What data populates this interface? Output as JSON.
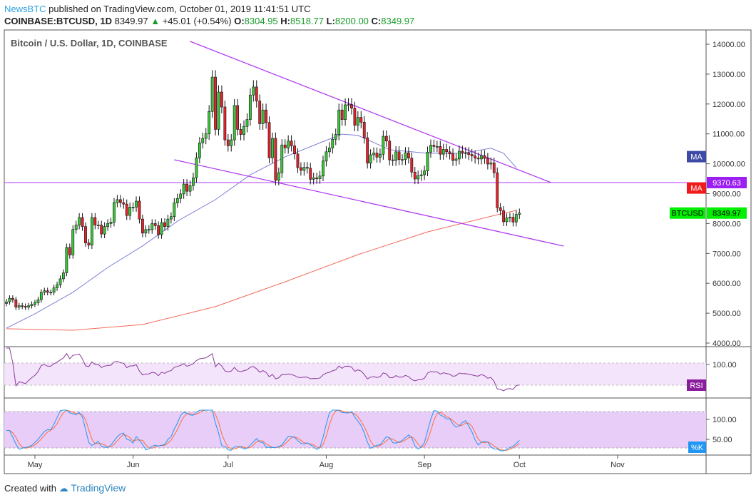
{
  "header": {
    "publisher": "NewsBTC",
    "published_text": "published on TradingView.com, October 01, 2019 11:41:51 UTC",
    "symbol": "COINBASE:BTCUSD, 1D",
    "last": "8349.97",
    "change": "+45.01 (+0.54%)",
    "o_label": "O:",
    "o": "8304.95",
    "h_label": "H:",
    "h": "8518.77",
    "l_label": "L:",
    "l": "8200.00",
    "c_label": "C:",
    "c": "8349.97"
  },
  "footer": {
    "created_with": "Created with",
    "brand": "TradingView"
  },
  "colors": {
    "up": "#37c837",
    "down": "#e8222c",
    "ma_fast": "#7b7fd6",
    "ma_slow": "#f26b5b",
    "trendline": "#b03cf0",
    "rsi": "#8a3a9a",
    "stoch_k": "#2196f3",
    "stoch_d": "#ff6d3a"
  },
  "chart_data": {
    "type": "candlestick",
    "title": "Bitcoin / U.S. Dollar, 1D, COINBASE",
    "start_date": "2019-04-22",
    "close": [
      5380,
      5500,
      5450,
      5200,
      5250,
      5230,
      5200,
      5250,
      5300,
      5350,
      5450,
      5700,
      5750,
      5700,
      5700,
      5850,
      5950,
      6150,
      6350,
      7200,
      6950,
      7800,
      7950,
      8200,
      7900,
      7350,
      7280,
      8200,
      7950,
      7950,
      7650,
      7900,
      8000,
      8050,
      8700,
      8800,
      8700,
      8650,
      8270,
      8550,
      8550,
      8750,
      8150,
      7680,
      7800,
      7800,
      8000,
      7930,
      7630,
      8030,
      7900,
      8150,
      8230,
      8690,
      8840,
      8990,
      9320,
      9080,
      9270,
      9530,
      10200,
      10700,
      10850,
      11000,
      11750,
      12900,
      11150,
      12400,
      11900,
      10800,
      10600,
      10800,
      11950,
      11150,
      10980,
      11250,
      11480,
      12300,
      12570,
      12100,
      11340,
      11800,
      11380,
      10200,
      10850,
      9450,
      9700,
      10630,
      10530,
      10760,
      10600,
      10330,
      9870,
      9780,
      9880,
      9850,
      9480,
      9530,
      9500,
      9590,
      10090,
      10400,
      10530,
      10820,
      10980,
      11800,
      11480,
      11970,
      11980,
      11860,
      11290,
      11550,
      11390,
      10870,
      10020,
      10300,
      10360,
      10220,
      10320,
      10920,
      10760,
      10130,
      10110,
      10400,
      10140,
      10140,
      10370,
      10190,
      9720,
      9490,
      9600,
      9630,
      9760,
      10390,
      10620,
      10580,
      10580,
      10320,
      10480,
      10400,
      10330,
      10110,
      10160,
      10420,
      10360,
      10370,
      10310,
      10260,
      10190,
      10160,
      10270,
      10180,
      9990,
      10030,
      9700,
      8530,
      8430,
      8060,
      8190,
      8210,
      8050,
      8305,
      8350
    ],
    "ma_fast": [
      [
        "2019-04-22",
        4500
      ],
      [
        "2019-05-01",
        4980
      ],
      [
        "2019-05-13",
        5700
      ],
      [
        "2019-05-24",
        6530
      ],
      [
        "2019-06-04",
        7250
      ],
      [
        "2019-06-15",
        8080
      ],
      [
        "2019-06-27",
        8800
      ],
      [
        "2019-07-08",
        9630
      ],
      [
        "2019-07-19",
        10230
      ],
      [
        "2019-07-30",
        10700
      ],
      [
        "2019-08-06",
        10990
      ],
      [
        "2019-08-11",
        10950
      ],
      [
        "2019-08-21",
        10470
      ],
      [
        "2019-09-02",
        10350
      ],
      [
        "2019-09-13",
        10350
      ],
      [
        "2019-09-22",
        10520
      ],
      [
        "2019-09-26",
        10350
      ],
      [
        "2019-09-30",
        9870
      ]
    ],
    "ma_slow": [
      [
        "2019-04-22",
        4480
      ],
      [
        "2019-05-13",
        4430
      ],
      [
        "2019-06-04",
        4620
      ],
      [
        "2019-06-27",
        5220
      ],
      [
        "2019-07-19",
        6050
      ],
      [
        "2019-08-11",
        6960
      ],
      [
        "2019-09-02",
        7720
      ],
      [
        "2019-09-25",
        8320
      ],
      [
        "2019-09-30",
        8440
      ]
    ],
    "trendlines": [
      [
        [
          "2019-06-19",
          14095
        ],
        [
          "2019-10-11",
          9370
        ]
      ],
      [
        [
          "2019-06-14",
          10134
        ],
        [
          "2019-10-15",
          7246
        ]
      ]
    ],
    "horizontal_line": 9370.63,
    "y_ticks": [
      "14000.00",
      "13000.00",
      "12000.00",
      "11000.00",
      "10000.00",
      "9000.00",
      "8000.00",
      "7000.00",
      "6000.00",
      "5000.00",
      "4000.00"
    ],
    "y_tick_values": [
      14000,
      13000,
      12000,
      11000,
      10000,
      9000,
      8000,
      7000,
      6000,
      5000,
      4000
    ],
    "x_ticks": [
      [
        "May",
        "2019-05-01"
      ],
      [
        "Jun",
        "2019-06-01"
      ],
      [
        "Jul",
        "2019-07-01"
      ],
      [
        "Aug",
        "2019-08-01"
      ],
      [
        "Sep",
        "2019-09-01"
      ],
      [
        "Oct",
        "2019-10-01"
      ],
      [
        "Nov",
        "2019-11-01"
      ]
    ],
    "labels": {
      "ma_fast": "MA",
      "ma_slow": "MA",
      "line_value": "9370.63",
      "symbol": "BTCUSD",
      "last": "8349.97"
    },
    "rsi": {
      "label": "RSI",
      "tick": "100.00"
    },
    "stoch": {
      "label": "%K",
      "ticks": [
        "100.00",
        "50.00"
      ]
    }
  }
}
